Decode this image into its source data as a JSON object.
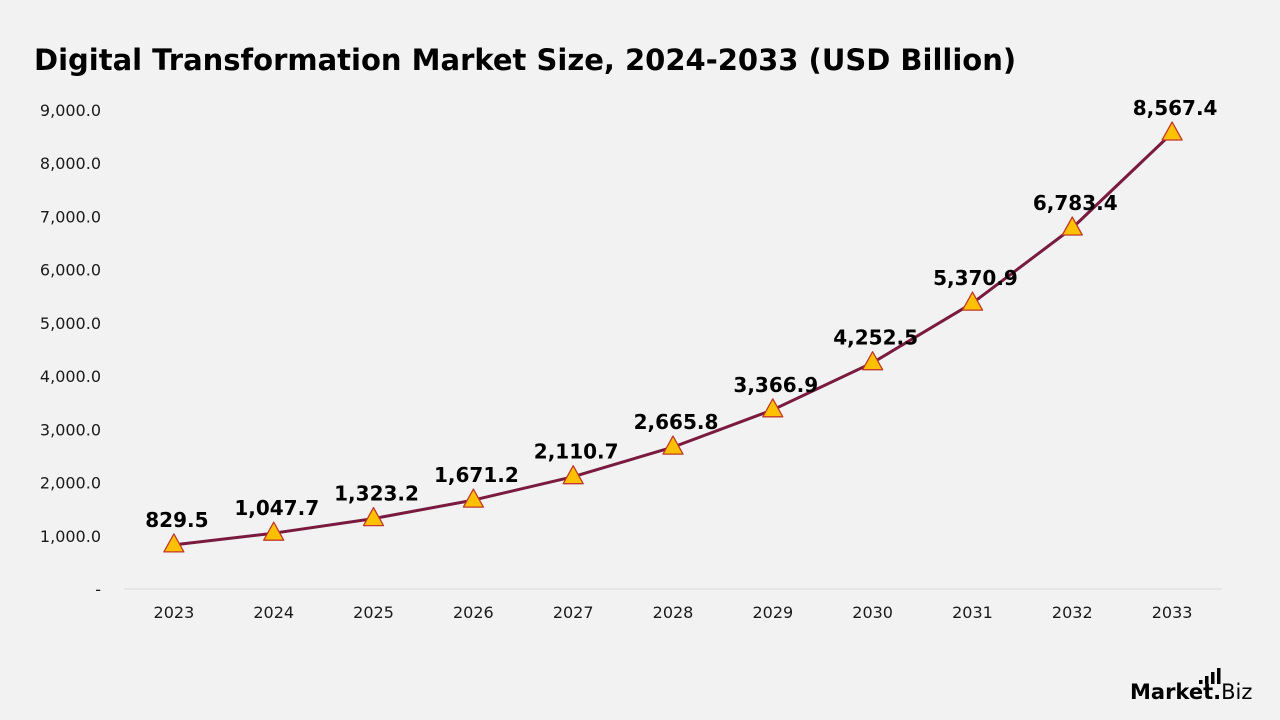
{
  "chart_data": {
    "type": "line",
    "title": "Digital Transformation Market Size, 2024-2033 (USD Billion)",
    "xlabel": "",
    "ylabel": "",
    "categories": [
      "2023",
      "2024",
      "2025",
      "2026",
      "2027",
      "2028",
      "2029",
      "2030",
      "2031",
      "2032",
      "2033"
    ],
    "series": [
      {
        "values": [
          829.5,
          1047.7,
          1323.2,
          1671.2,
          2110.7,
          2665.8,
          3366.9,
          4252.5,
          5370.9,
          6783.4,
          8567.4
        ],
        "value_labels": [
          "829.5",
          "1,047.7",
          "1,323.2",
          "1,671.2",
          "2,110.7",
          "2,665.8",
          "3,366.9",
          "4,252.5",
          "5,370.9",
          "6,783.4",
          "8,567.4"
        ]
      }
    ],
    "yticks": [
      0,
      1000,
      2000,
      3000,
      4000,
      5000,
      6000,
      7000,
      8000,
      9000
    ],
    "ytick_labels": [
      "-",
      "1,000.0",
      "2,000.0",
      "3,000.0",
      "4,000.0",
      "5,000.0",
      "6,000.0",
      "7,000.0",
      "8,000.0",
      "9,000.0"
    ],
    "ylim": [
      0,
      9000
    ],
    "grid": false,
    "marker": "triangle",
    "colors": {
      "line": "#7a1a3e",
      "marker_fill": "#ffc000",
      "marker_stroke": "#c0392b",
      "background": "#f2f2f2",
      "axis": "#d9d9d9"
    }
  },
  "brand": {
    "bold_part": "Market",
    "dot": ".",
    "light_part": "Biz",
    "icon": "bar-chart-icon"
  }
}
